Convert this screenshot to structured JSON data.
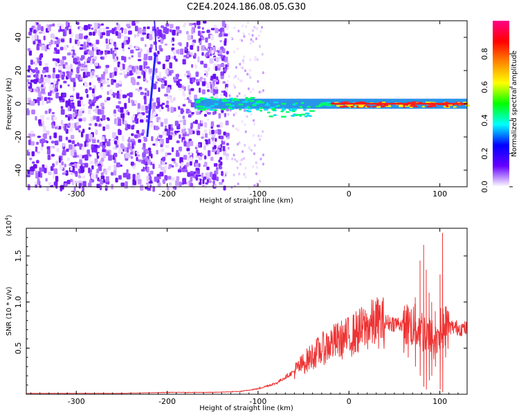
{
  "title": "C2E4.2024.186.08.05.G30",
  "chart_data": [
    {
      "type": "heatmap",
      "xlabel": "Height of straight line (km)",
      "ylabel": "Frequency (Hz)",
      "xlim": [
        -355,
        130
      ],
      "ylim": [
        -50,
        50
      ],
      "xticks": [
        -300,
        -200,
        -100,
        0,
        100
      ],
      "yticks": [
        -40,
        -20,
        0,
        20,
        40
      ],
      "colorbar": {
        "label": "Normalized spectral amplitude",
        "range": [
          0,
          1
        ],
        "ticks": [
          "0.0",
          "0.2",
          "0.4",
          "0.6",
          "0.8"
        ],
        "colors": [
          "#ffffff",
          "#6600ff",
          "#0000ff",
          "#00ffff",
          "#00ff00",
          "#ffff00",
          "#ff8800",
          "#ff0000",
          "#ff0088"
        ]
      },
      "description_regions": {
        "noise_band_x": [
          -355,
          -135
        ],
        "sparse_band_x": [
          -135,
          -95
        ],
        "signal_line_x": [
          -170,
          130
        ],
        "signal_line_freq": 0,
        "chirp_x": [
          -222,
          -213
        ],
        "chirp_freq": [
          -20,
          30
        ]
      }
    },
    {
      "type": "line",
      "xlabel": "Height of straight line (km)",
      "ylabel": "SNR (10 * v/v)",
      "y_multiplier": "(x10",
      "y_multiplier_exp": "4",
      "y_multiplier_close": ")",
      "xlim": [
        -355,
        130
      ],
      "ylim": [
        0,
        1.8
      ],
      "xticks": [
        -300,
        -200,
        -100,
        0,
        100
      ],
      "yticks": [
        "0.5",
        "1.0",
        "1.5"
      ],
      "line_color": "#ee3333",
      "series": [
        {
          "x": [
            -355,
            -300,
            -250,
            -200,
            -150,
            -120,
            -100,
            -80,
            -60,
            -40,
            -20,
            0,
            10,
            20,
            30,
            40,
            50,
            60,
            70,
            80,
            90,
            95,
            100,
            105,
            110,
            120,
            130
          ],
          "y": [
            0.01,
            0.01,
            0.01,
            0.02,
            0.02,
            0.03,
            0.06,
            0.12,
            0.25,
            0.42,
            0.55,
            0.62,
            0.68,
            0.73,
            0.78,
            0.78,
            0.77,
            0.76,
            0.75,
            0.7,
            0.6,
            0.55,
            0.7,
            0.72,
            0.73,
            0.72,
            0.71
          ]
        }
      ],
      "spikes": [
        {
          "x": 73,
          "y": 1.05,
          "low": 0.3
        },
        {
          "x": 78,
          "y": 1.45,
          "low": 0.2
        },
        {
          "x": 82,
          "y": 1.62,
          "low": 0.08
        },
        {
          "x": 85,
          "y": 1.35,
          "low": 0.05
        },
        {
          "x": 88,
          "y": 1.1,
          "low": 0.15
        },
        {
          "x": 91,
          "y": 1.0,
          "low": 0.2
        },
        {
          "x": 95,
          "y": 0.9,
          "low": 0.3
        },
        {
          "x": 100,
          "y": 1.3,
          "low": 0.05
        },
        {
          "x": 103,
          "y": 1.75,
          "low": 0.02
        },
        {
          "x": 106,
          "y": 0.95,
          "low": 0.4
        },
        {
          "x": 65,
          "y": 0.95,
          "low": 0.4
        },
        {
          "x": 60,
          "y": 0.9,
          "low": 0.45
        }
      ]
    }
  ]
}
